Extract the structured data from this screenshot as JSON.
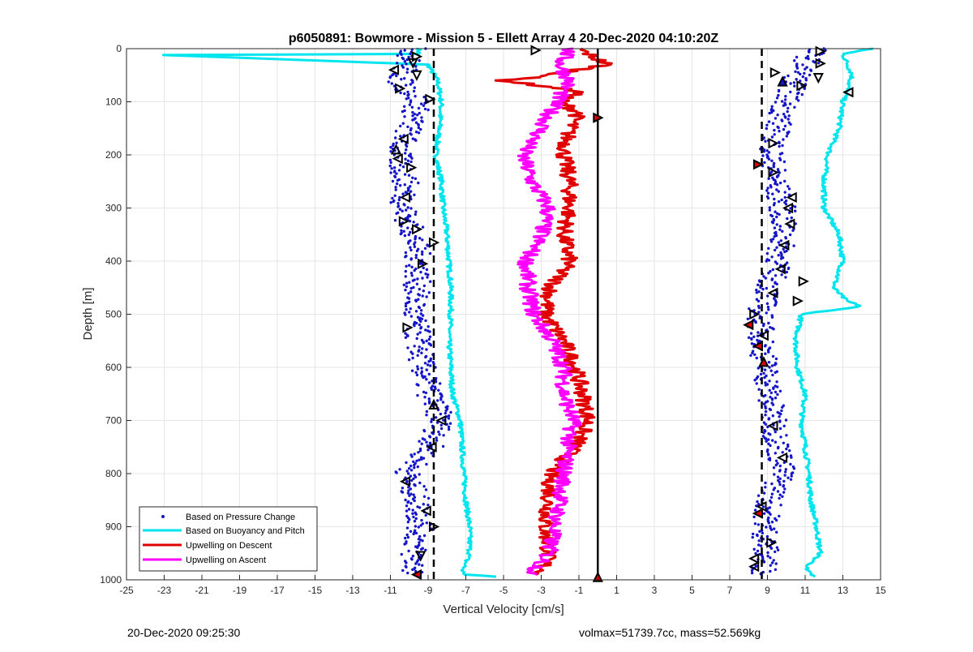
{
  "chart_data": {
    "type": "line",
    "title": "p6050891: Bowmore - Mission 5 - Ellett Array 4 20-Dec-2020 04:10:20Z",
    "xlabel": "Vertical Velocity [cm/s]",
    "ylabel": "Depth [m]",
    "xlim": [
      -25,
      15
    ],
    "ylim": [
      0,
      1000
    ],
    "y_reversed": true,
    "grid": true,
    "legend_position": "bottom-left",
    "xticks": [
      "-25",
      "-23",
      "-21",
      "-19",
      "-17",
      "-15",
      "-13",
      "-11",
      "-9",
      "-7",
      "-5",
      "-3",
      "-1",
      "1",
      "3",
      "5",
      "7",
      "9",
      "11",
      "13",
      "15"
    ],
    "yticks": [
      "0",
      "100",
      "200",
      "300",
      "400",
      "500",
      "600",
      "700",
      "800",
      "900",
      "1000"
    ],
    "reference_lines": {
      "dashed_x": [
        -8.7,
        8.7
      ],
      "solid_x": [
        0
      ]
    },
    "series": [
      {
        "name": "Based on Pressure Change",
        "style": "dots",
        "color": "#1414c8",
        "groups": [
          {
            "d": [
              0,
              60,
              100,
              150,
              200,
              250,
              300,
              350,
              400,
              450,
              500,
              550,
              600,
              650,
              700,
              750,
              800,
              850,
              900,
              950,
              990
            ],
            "x": [
              -9.8,
              -10.5,
              -9.5,
              -10,
              -10.6,
              -10.2,
              -10.3,
              -9.8,
              -9.5,
              -9.6,
              -9.8,
              -9.5,
              -9.3,
              -8.9,
              -8.3,
              -8.9,
              -10.1,
              -9.6,
              -9.4,
              -9.8,
              -9.7
            ]
          },
          {
            "d": [
              0,
              60,
              100,
              150,
              200,
              250,
              300,
              350,
              400,
              450,
              500,
              550,
              600,
              650,
              700,
              750,
              800,
              850,
              900,
              950,
              990
            ],
            "x": [
              11.5,
              10.5,
              10,
              9.5,
              9.2,
              9.4,
              9.8,
              9.8,
              9.6,
              9.1,
              8.6,
              8.7,
              8.9,
              9.1,
              9.3,
              9.6,
              9.8,
              9.1,
              8.9,
              8.9,
              8.8
            ]
          }
        ]
      },
      {
        "name": "Based on Buoyancy and Pitch",
        "style": "line",
        "color": "#00e5ee",
        "groups": [
          {
            "d": [
              0,
              10,
              12,
              30,
              60,
              100,
              150,
              200,
              250,
              300,
              350,
              400,
              450,
              500,
              550,
              600,
              650,
              700,
              750,
              800,
              850,
              900,
              950,
              985,
              990,
              995
            ],
            "x": [
              -9.5,
              -9.5,
              -23,
              -9,
              -8.5,
              -8.3,
              -8.4,
              -8.6,
              -8.3,
              -8.2,
              -8,
              -7.9,
              -7.8,
              -7.8,
              -7.9,
              -7.8,
              -7.7,
              -7.3,
              -7.2,
              -7.1,
              -7,
              -6.8,
              -6.8,
              -7.2,
              -7,
              -5
            ]
          },
          {
            "d": [
              0,
              10,
              50,
              100,
              150,
              200,
              250,
              300,
              350,
              400,
              450,
              475,
              485,
              500,
              550,
              600,
              650,
              700,
              750,
              800,
              850,
              900,
              950,
              980,
              995
            ],
            "x": [
              14.5,
              13,
              13.5,
              13,
              12.8,
              12.2,
              12,
              12,
              12.8,
              13,
              12.5,
              13.2,
              14,
              10.8,
              10.5,
              10.6,
              11,
              10.8,
              11,
              11.2,
              11.3,
              11.6,
              11.8,
              11,
              11.5
            ]
          }
        ]
      },
      {
        "name": "Upwelling on Descent",
        "style": "line",
        "color": "#e00000",
        "groups": [
          {
            "d": [
              0,
              30,
              50,
              60,
              80,
              100,
              120,
              150,
              200,
              250,
              300,
              350,
              400,
              450,
              500,
              550,
              600,
              650,
              700,
              750,
              800,
              850,
              900,
              950,
              990
            ],
            "x": [
              -1,
              0.5,
              -2.5,
              -5,
              -1,
              -2,
              -1,
              -1.5,
              -1.8,
              -1.5,
              -1.5,
              -1.8,
              -1.5,
              -2.5,
              -2.8,
              -1.8,
              -1.2,
              -0.8,
              -0.5,
              -1.2,
              -2.5,
              -2.6,
              -2.8,
              -2.6,
              -3
            ]
          }
        ]
      },
      {
        "name": "Upwelling on Ascent",
        "style": "line",
        "color": "#ff00ff",
        "groups": [
          {
            "d": [
              0,
              30,
              60,
              100,
              150,
              200,
              250,
              300,
              350,
              400,
              450,
              500,
              550,
              600,
              650,
              700,
              750,
              800,
              850,
              900,
              950,
              990
            ],
            "x": [
              -1.5,
              -2,
              -1.5,
              -2.2,
              -3,
              -4,
              -3.5,
              -2.6,
              -3,
              -3.8,
              -3.7,
              -3.4,
              -2.4,
              -1.8,
              -1.8,
              -1.3,
              -1.6,
              -1.8,
              -2,
              -2.3,
              -2.6,
              -3.5
            ]
          }
        ]
      }
    ],
    "markers": [
      {
        "x": -9.6,
        "d": 15,
        "shape": "right"
      },
      {
        "x": -9.8,
        "d": 27,
        "shape": "down"
      },
      {
        "x": -10.8,
        "d": 40,
        "shape": "left"
      },
      {
        "x": -9.6,
        "d": 50,
        "shape": "down"
      },
      {
        "x": -10.5,
        "d": 75,
        "shape": "right"
      },
      {
        "x": -8.9,
        "d": 95,
        "shape": "right"
      },
      {
        "x": -10.3,
        "d": 170,
        "shape": "left"
      },
      {
        "x": -10.7,
        "d": 190,
        "shape": "up"
      },
      {
        "x": -10.6,
        "d": 207,
        "shape": "left"
      },
      {
        "x": -9.9,
        "d": 224,
        "shape": "right"
      },
      {
        "x": -10.2,
        "d": 280,
        "shape": "left"
      },
      {
        "x": -10.3,
        "d": 325,
        "shape": "right"
      },
      {
        "x": -9.6,
        "d": 340,
        "shape": "right"
      },
      {
        "x": -8.7,
        "d": 365,
        "shape": "right"
      },
      {
        "x": -9.3,
        "d": 405,
        "shape": "right"
      },
      {
        "x": -10.1,
        "d": 525,
        "shape": "right"
      },
      {
        "x": -8.7,
        "d": 670,
        "shape": "up"
      },
      {
        "x": -8.3,
        "d": 700,
        "shape": "left"
      },
      {
        "x": -8.8,
        "d": 750,
        "shape": "left"
      },
      {
        "x": -10.2,
        "d": 815,
        "shape": "left"
      },
      {
        "x": -9.1,
        "d": 870,
        "shape": "left"
      },
      {
        "x": -8.7,
        "d": 900,
        "shape": "right"
      },
      {
        "x": -9.4,
        "d": 955,
        "shape": "down"
      },
      {
        "x": -9.6,
        "d": 990,
        "shape": "left",
        "fill": "#e00000"
      },
      {
        "x": -3.3,
        "d": 3,
        "shape": "right"
      },
      {
        "x": 0,
        "d": 130,
        "shape": "right",
        "fill": "#e00000"
      },
      {
        "x": 0,
        "d": 995,
        "shape": "up",
        "fill": "#e00000"
      },
      {
        "x": 11.8,
        "d": 5,
        "shape": "right"
      },
      {
        "x": 11.8,
        "d": 28,
        "shape": "right"
      },
      {
        "x": 9.4,
        "d": 45,
        "shape": "right"
      },
      {
        "x": 11.7,
        "d": 55,
        "shape": "down"
      },
      {
        "x": 9.8,
        "d": 62,
        "shape": "up",
        "fill": "#1414c8"
      },
      {
        "x": 10.8,
        "d": 70,
        "shape": "right"
      },
      {
        "x": 13.3,
        "d": 82,
        "shape": "left"
      },
      {
        "x": 9.3,
        "d": 178,
        "shape": "right"
      },
      {
        "x": 8.5,
        "d": 218,
        "shape": "right",
        "fill": "#e00000"
      },
      {
        "x": 9.3,
        "d": 233,
        "shape": "right"
      },
      {
        "x": 10.3,
        "d": 280,
        "shape": "left"
      },
      {
        "x": 10.1,
        "d": 300,
        "shape": "left"
      },
      {
        "x": 10.2,
        "d": 330,
        "shape": "left"
      },
      {
        "x": 9.9,
        "d": 370,
        "shape": "left"
      },
      {
        "x": 9.7,
        "d": 415,
        "shape": "left"
      },
      {
        "x": 10.9,
        "d": 438,
        "shape": "right"
      },
      {
        "x": 9.3,
        "d": 460,
        "shape": "left"
      },
      {
        "x": 10.6,
        "d": 475,
        "shape": "right"
      },
      {
        "x": 8.3,
        "d": 500,
        "shape": "right"
      },
      {
        "x": 8.0,
        "d": 520,
        "shape": "left",
        "fill": "#e00000"
      },
      {
        "x": 8.8,
        "d": 540,
        "shape": "left"
      },
      {
        "x": 8.5,
        "d": 560,
        "shape": "left",
        "fill": "#e00000"
      },
      {
        "x": 8.8,
        "d": 590,
        "shape": "up",
        "fill": "#e00000"
      },
      {
        "x": 9.3,
        "d": 710,
        "shape": "left"
      },
      {
        "x": 9.8,
        "d": 770,
        "shape": "left"
      },
      {
        "x": 8.7,
        "d": 862,
        "shape": "left"
      },
      {
        "x": 8.5,
        "d": 875,
        "shape": "left",
        "fill": "#e00000"
      },
      {
        "x": 9.2,
        "d": 930,
        "shape": "right"
      },
      {
        "x": 8.3,
        "d": 960,
        "shape": "left"
      },
      {
        "x": 8.3,
        "d": 975,
        "shape": "left"
      }
    ]
  },
  "footer": {
    "timestamp": "20-Dec-2020 09:25:30",
    "mass_info": "volmax=51739.7cc, mass=52.569kg"
  }
}
